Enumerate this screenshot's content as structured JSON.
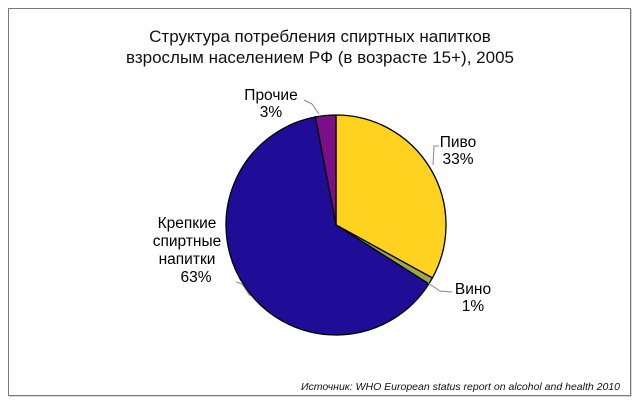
{
  "chart_data": {
    "type": "pie",
    "title": "Структура потребления спиртных напитков взрослым населением РФ (в возрасте 15+), 2005",
    "title_lines": [
      "Структура потребления спиртных напитков",
      "взрослым населением РФ (в возрасте 15+), 2005"
    ],
    "categories": [
      "Пиво",
      "Вино",
      "Крепкие спиртные напитки",
      "Прочие"
    ],
    "values": [
      33,
      1,
      63,
      3
    ],
    "unit": "%",
    "colors": [
      "#FFD21F",
      "#9AA84A",
      "#1F0D98",
      "#7B0F88"
    ],
    "start_angle_deg": 0,
    "direction": "clockwise",
    "legend": "none (direct labels with leader lines)",
    "source": "Источник: WHO European status report on alcohol and health 2010"
  },
  "labels": {
    "beer": {
      "name": "Пиво",
      "pct": "33%"
    },
    "wine": {
      "name": "Вино",
      "pct": "1%"
    },
    "spirits": {
      "name_lines": [
        "Крепкие",
        "спиртные",
        "напитки"
      ],
      "pct": "63%"
    },
    "other": {
      "name": "Прочие",
      "pct": "3%"
    }
  }
}
